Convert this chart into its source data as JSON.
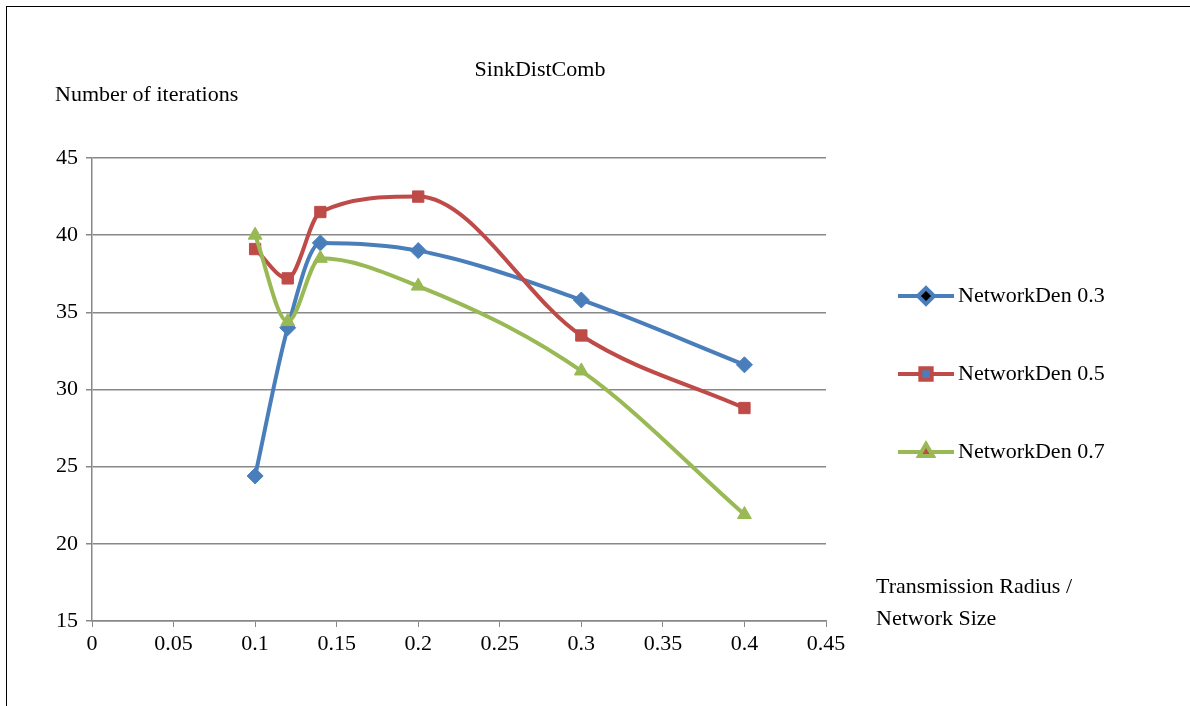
{
  "chart_data": {
    "type": "line",
    "title": "SinkDistComb",
    "ylabel": "Number of iterations",
    "xlabel": "Transmission Radius / Network Size",
    "x": [
      0.1,
      0.12,
      0.14,
      0.2,
      0.3,
      0.4
    ],
    "series": [
      {
        "name": "NetworkDen 0.3",
        "color": "#4a7ebb",
        "marker": "diamond",
        "values": [
          24.4,
          34.0,
          39.5,
          39.0,
          35.8,
          31.6
        ]
      },
      {
        "name": "NetworkDen 0.5",
        "color": "#be4b48",
        "marker": "square",
        "values": [
          39.1,
          37.2,
          41.5,
          42.5,
          33.5,
          28.8
        ]
      },
      {
        "name": "NetworkDen 0.7",
        "color": "#98b954",
        "marker": "triangle",
        "values": [
          40.0,
          34.4,
          38.5,
          36.7,
          31.2,
          21.9
        ]
      }
    ],
    "xlim": [
      0,
      0.45
    ],
    "xticks": [
      0,
      0.05,
      0.1,
      0.15,
      0.2,
      0.25,
      0.3,
      0.35,
      0.4,
      0.45
    ],
    "ylim": [
      15,
      45
    ],
    "yticks": [
      15,
      20,
      25,
      30,
      35,
      40,
      45
    ],
    "grid": "y",
    "legend": "right",
    "line_style": "solid"
  }
}
